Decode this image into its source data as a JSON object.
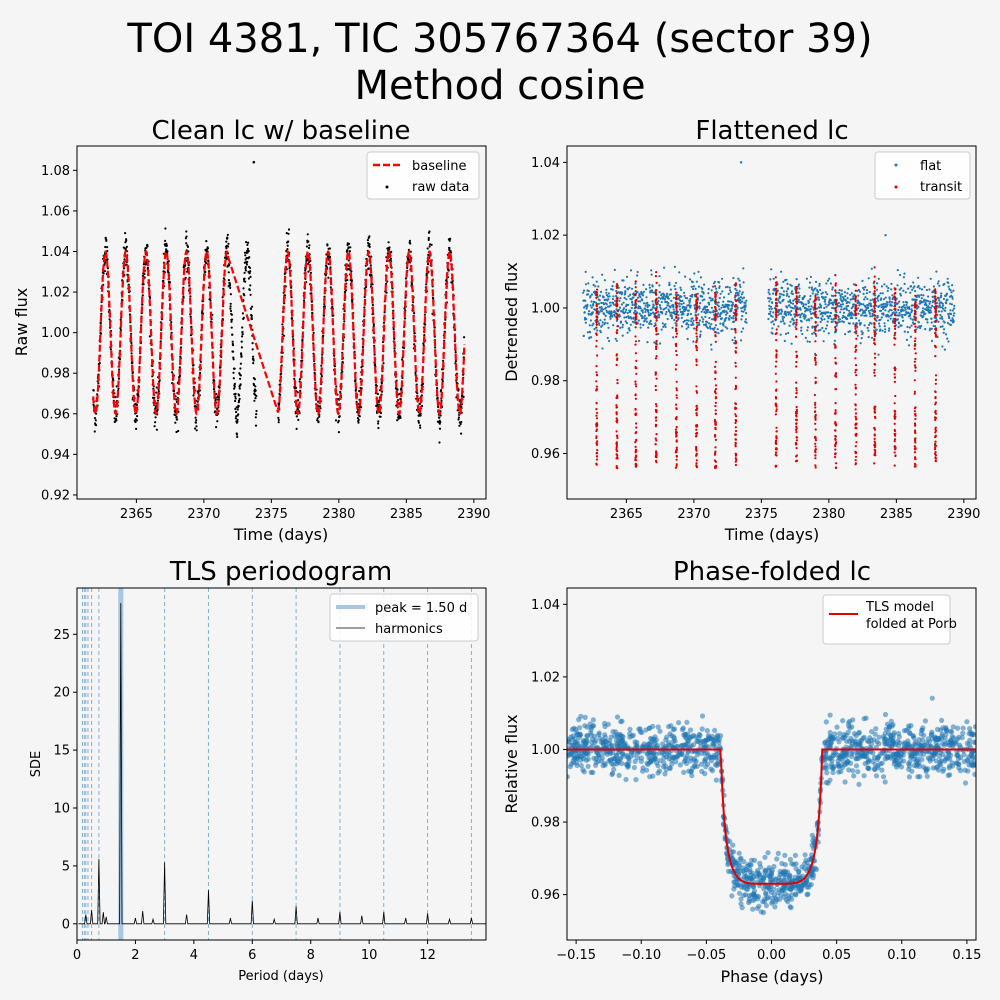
{
  "figure": {
    "title_line1": "TOI 4381, TIC 305767364 (sector 39)",
    "title_line2": "Method cosine",
    "background": "#f5f5f5"
  },
  "chart_data": [
    {
      "type": "scatter",
      "title": "Clean lc w/ baseline",
      "xlabel": "Time (days)",
      "ylabel": "Raw flux",
      "xlim": [
        2360.6,
        2390.9
      ],
      "ylim": [
        0.918,
        1.092
      ],
      "xticks": [
        2365,
        2370,
        2375,
        2380,
        2385,
        2390
      ],
      "xtick_labels": [
        "2365",
        "2370",
        "2375",
        "2380",
        "2385",
        "2390"
      ],
      "yticks": [
        0.92,
        0.94,
        0.96,
        0.98,
        1.0,
        1.02,
        1.04,
        1.06,
        1.08
      ],
      "ytick_labels": [
        "0.92",
        "0.94",
        "0.96",
        "0.98",
        "1.00",
        "1.02",
        "1.04",
        "1.06",
        "1.08"
      ],
      "legend": {
        "placement": "top-right",
        "entries": [
          "baseline",
          "raw data"
        ]
      },
      "series": [
        {
          "name": "baseline",
          "kind": "dashed-line",
          "color": "#ff0000",
          "model": {
            "center": 1.0,
            "amplitude": 0.04,
            "period_days": 1.5,
            "phase_origin": 2362.0
          },
          "segments": [
            [
              2361.8,
              2371.8
            ],
            [
              2375.5,
              2389.3
            ]
          ],
          "gap_bridge": [
            2371.8,
            2375.5
          ]
        },
        {
          "name": "raw data",
          "kind": "points",
          "color": "#000000",
          "outliers": [
            {
              "x": 2373.7,
              "y": 1.084
            }
          ]
        }
      ],
      "time_span": [
        2361.8,
        2389.3
      ],
      "data_gap": [
        2373.9,
        2375.5
      ]
    },
    {
      "type": "scatter",
      "title": "Flattened lc",
      "xlabel": "Time (days)",
      "ylabel": "Detrended flux",
      "xlim": [
        2360.6,
        2390.9
      ],
      "ylim": [
        0.9475,
        1.0445
      ],
      "xticks": [
        2365,
        2370,
        2375,
        2380,
        2385,
        2390
      ],
      "xtick_labels": [
        "2365",
        "2370",
        "2375",
        "2380",
        "2385",
        "2390"
      ],
      "yticks": [
        0.96,
        0.98,
        1.0,
        1.02,
        1.04
      ],
      "ytick_labels": [
        "0.96",
        "0.98",
        "1.00",
        "1.02",
        "1.04"
      ],
      "legend": {
        "placement": "top-right",
        "entries": [
          "flat",
          "transit"
        ]
      },
      "series": [
        {
          "name": "flat",
          "color": "#1f77b4",
          "baseline": 1.0,
          "scatter": 0.004
        },
        {
          "name": "transit",
          "color": "#e00000",
          "transit_times": [
            2362.8,
            2364.3,
            2365.7,
            2367.2,
            2368.7,
            2370.2,
            2371.6,
            2373.1,
            2376.1,
            2377.6,
            2379.0,
            2380.5,
            2382.0,
            2383.4,
            2384.9,
            2386.4,
            2387.9
          ],
          "depth_min": 0.953
        }
      ],
      "outliers": [
        {
          "x": 2373.5,
          "y": 1.04
        },
        {
          "x": 2384.2,
          "y": 1.02
        }
      ]
    },
    {
      "type": "line",
      "title": "TLS periodogram",
      "xlabel": "Period (days)",
      "ylabel": "SDE",
      "xlim": [
        0,
        14.0
      ],
      "ylim": [
        -1.4,
        29.0
      ],
      "xticks": [
        0,
        2,
        4,
        6,
        8,
        10,
        12
      ],
      "xtick_labels": [
        "0",
        "2",
        "4",
        "6",
        "8",
        "10",
        "12"
      ],
      "yticks": [
        0,
        5,
        10,
        15,
        20,
        25
      ],
      "ytick_labels": [
        "0",
        "5",
        "10",
        "15",
        "20",
        "25"
      ],
      "legend": {
        "placement": "top-right",
        "entries": [
          "peak = 1.50 d",
          "harmonics"
        ]
      },
      "peak_period": 1.5,
      "peak_color": "#a6c8e4",
      "harmonics": [
        0.1875,
        0.25,
        0.3,
        0.375,
        0.5,
        0.75,
        1.5,
        3.0,
        4.5,
        6.0,
        7.5,
        9.0,
        10.5,
        12.0,
        13.5
      ],
      "peaks": [
        {
          "x": 0.3,
          "y": 0.8
        },
        {
          "x": 0.5,
          "y": 1.2
        },
        {
          "x": 0.75,
          "y": 5.6
        },
        {
          "x": 0.9,
          "y": 1.0
        },
        {
          "x": 1.0,
          "y": 0.6
        },
        {
          "x": 1.5,
          "y": 27.7
        },
        {
          "x": 2.0,
          "y": 0.5
        },
        {
          "x": 2.25,
          "y": 1.1
        },
        {
          "x": 2.6,
          "y": 0.4
        },
        {
          "x": 3.0,
          "y": 5.3
        },
        {
          "x": 3.75,
          "y": 0.8
        },
        {
          "x": 4.5,
          "y": 2.9
        },
        {
          "x": 5.25,
          "y": 0.5
        },
        {
          "x": 6.0,
          "y": 2.0
        },
        {
          "x": 6.75,
          "y": 0.4
        },
        {
          "x": 7.5,
          "y": 1.5
        },
        {
          "x": 8.25,
          "y": 0.5
        },
        {
          "x": 9.0,
          "y": 1.0
        },
        {
          "x": 9.75,
          "y": 0.7
        },
        {
          "x": 10.5,
          "y": 1.0
        },
        {
          "x": 11.25,
          "y": 0.5
        },
        {
          "x": 12.0,
          "y": 0.9
        },
        {
          "x": 12.75,
          "y": 0.4
        },
        {
          "x": 13.5,
          "y": 0.5
        }
      ]
    },
    {
      "type": "scatter",
      "title": "Phase-folded lc",
      "xlabel": "Phase (days)",
      "ylabel": "Relative flux",
      "xlim": [
        -0.157,
        0.157
      ],
      "ylim": [
        0.9475,
        1.0445
      ],
      "xticks": [
        -0.15,
        -0.1,
        -0.05,
        0.0,
        0.05,
        0.1,
        0.15
      ],
      "xtick_labels": [
        "−0.15",
        "−0.10",
        "−0.05",
        "0.00",
        "0.05",
        "0.10",
        "0.15"
      ],
      "yticks": [
        0.96,
        0.98,
        1.0,
        1.02,
        1.04
      ],
      "ytick_labels": [
        "0.96",
        "0.98",
        "1.00",
        "1.02",
        "1.04"
      ],
      "legend": {
        "placement": "top-right",
        "entries": [
          "TLS model",
          "folded at Porb"
        ]
      },
      "series": [
        {
          "name": "data",
          "color": "#1f77b4"
        },
        {
          "name": "TLS model",
          "color": "#e00000",
          "depth_min": 0.963,
          "half_duration": 0.039,
          "baseline": 1.0
        }
      ]
    }
  ]
}
